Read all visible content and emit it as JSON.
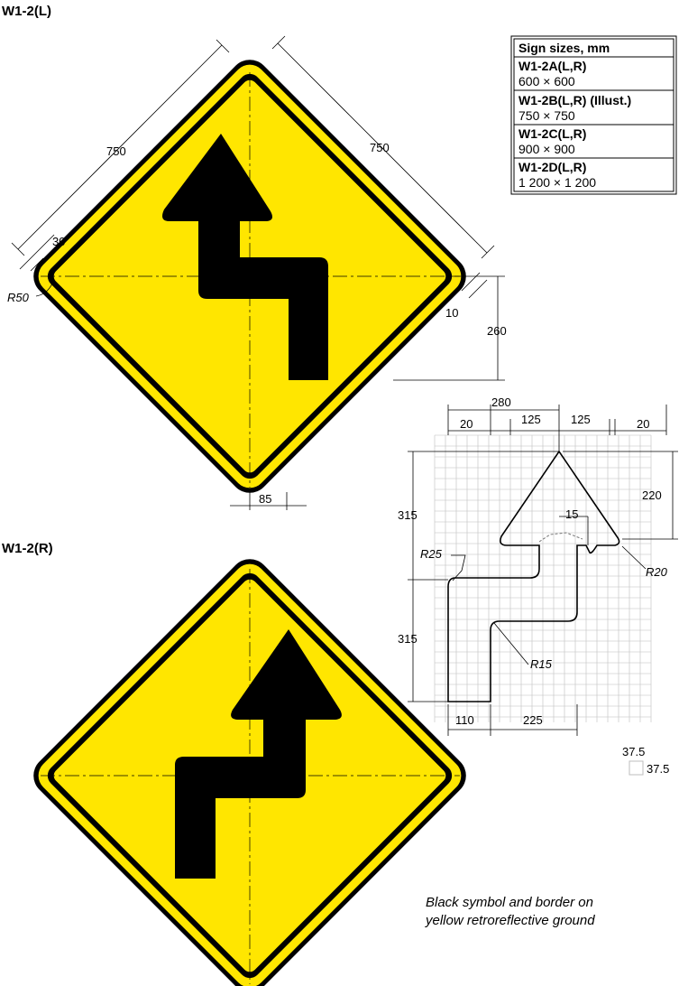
{
  "titles": {
    "left": "W1-2(L)",
    "right": "W1-2(R)"
  },
  "table": {
    "header": "Sign sizes, mm",
    "rows": [
      {
        "code": "W1-2A(L,R)",
        "size": "600 × 600"
      },
      {
        "code": "W1-2B(L,R) (Illust.)",
        "size": "750 × 750"
      },
      {
        "code": "W1-2C(L,R)",
        "size": "900 × 900"
      },
      {
        "code": "W1-2D(L,R)",
        "size": "1 200 × 1 200"
      }
    ]
  },
  "sign_dims": {
    "side_left": "750",
    "side_right": "750",
    "border": "30",
    "corner_radius": "R50",
    "inset": "10",
    "arrow_offset": "260",
    "stem_width": "85"
  },
  "detail_dims": {
    "overall_width": "280",
    "w20_left": "20",
    "w125_left": "125",
    "w125_right": "125",
    "w20_right": "20",
    "head_height": "220",
    "gap15": "15",
    "r25": "R25",
    "r20": "R20",
    "r15": "R15",
    "upper_height": "315",
    "lower_height": "315",
    "base110": "110",
    "base225": "225"
  },
  "grid_key": {
    "cell_w": "37.5",
    "cell_h": "37.5"
  },
  "note": {
    "line1": "Black symbol and border on",
    "line2": "yellow retroreflective ground"
  },
  "colors": {
    "ground": "#FFE600",
    "symbol": "#000000",
    "grid": "#BDBDBD"
  }
}
